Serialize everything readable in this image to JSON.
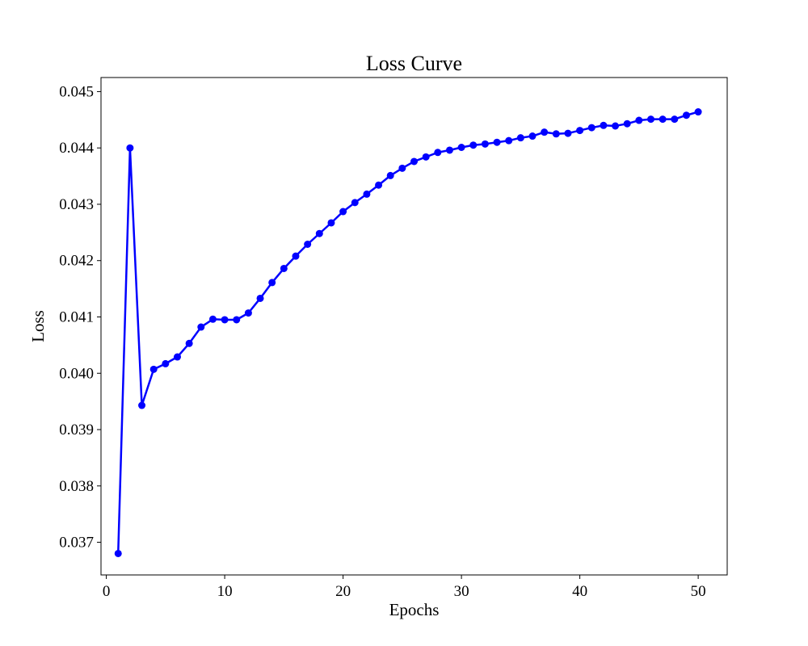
{
  "chart_data": {
    "type": "line",
    "title": "Loss Curve",
    "xlabel": "Epochs",
    "ylabel": "Loss",
    "xlim": [
      -0.45,
      52.45
    ],
    "ylim": [
      0.03642,
      0.04525
    ],
    "x_ticks": [
      0,
      10,
      20,
      30,
      40,
      50
    ],
    "y_ticks": [
      0.037,
      0.038,
      0.039,
      0.04,
      0.041,
      0.042,
      0.043,
      0.044,
      0.045
    ],
    "y_tick_labels": [
      "0.037",
      "0.038",
      "0.039",
      "0.040",
      "0.041",
      "0.042",
      "0.043",
      "0.044",
      "0.045"
    ],
    "grid": false,
    "legend": "none",
    "series": [
      {
        "color": "#0000ff",
        "marker": "circle",
        "x": [
          1,
          2,
          3,
          4,
          5,
          6,
          7,
          8,
          9,
          10,
          11,
          12,
          13,
          14,
          15,
          16,
          17,
          18,
          19,
          20,
          21,
          22,
          23,
          24,
          25,
          26,
          27,
          28,
          29,
          30,
          31,
          32,
          33,
          34,
          35,
          36,
          37,
          38,
          39,
          40,
          41,
          42,
          43,
          44,
          45,
          46,
          47,
          48,
          49,
          50
        ],
        "values": [
          0.0368,
          0.044,
          0.03943,
          0.04007,
          0.04017,
          0.04029,
          0.04053,
          0.04082,
          0.04096,
          0.04095,
          0.04095,
          0.04107,
          0.04133,
          0.04161,
          0.04186,
          0.04208,
          0.04229,
          0.04248,
          0.04267,
          0.04287,
          0.04303,
          0.04318,
          0.04334,
          0.04351,
          0.04364,
          0.04376,
          0.04384,
          0.04392,
          0.04396,
          0.04401,
          0.04405,
          0.04407,
          0.0441,
          0.04413,
          0.04418,
          0.04421,
          0.04428,
          0.04425,
          0.04426,
          0.04431,
          0.04436,
          0.0444,
          0.04439,
          0.04443,
          0.04449,
          0.04451,
          0.04451,
          0.04451,
          0.04458,
          0.04464
        ]
      }
    ]
  }
}
